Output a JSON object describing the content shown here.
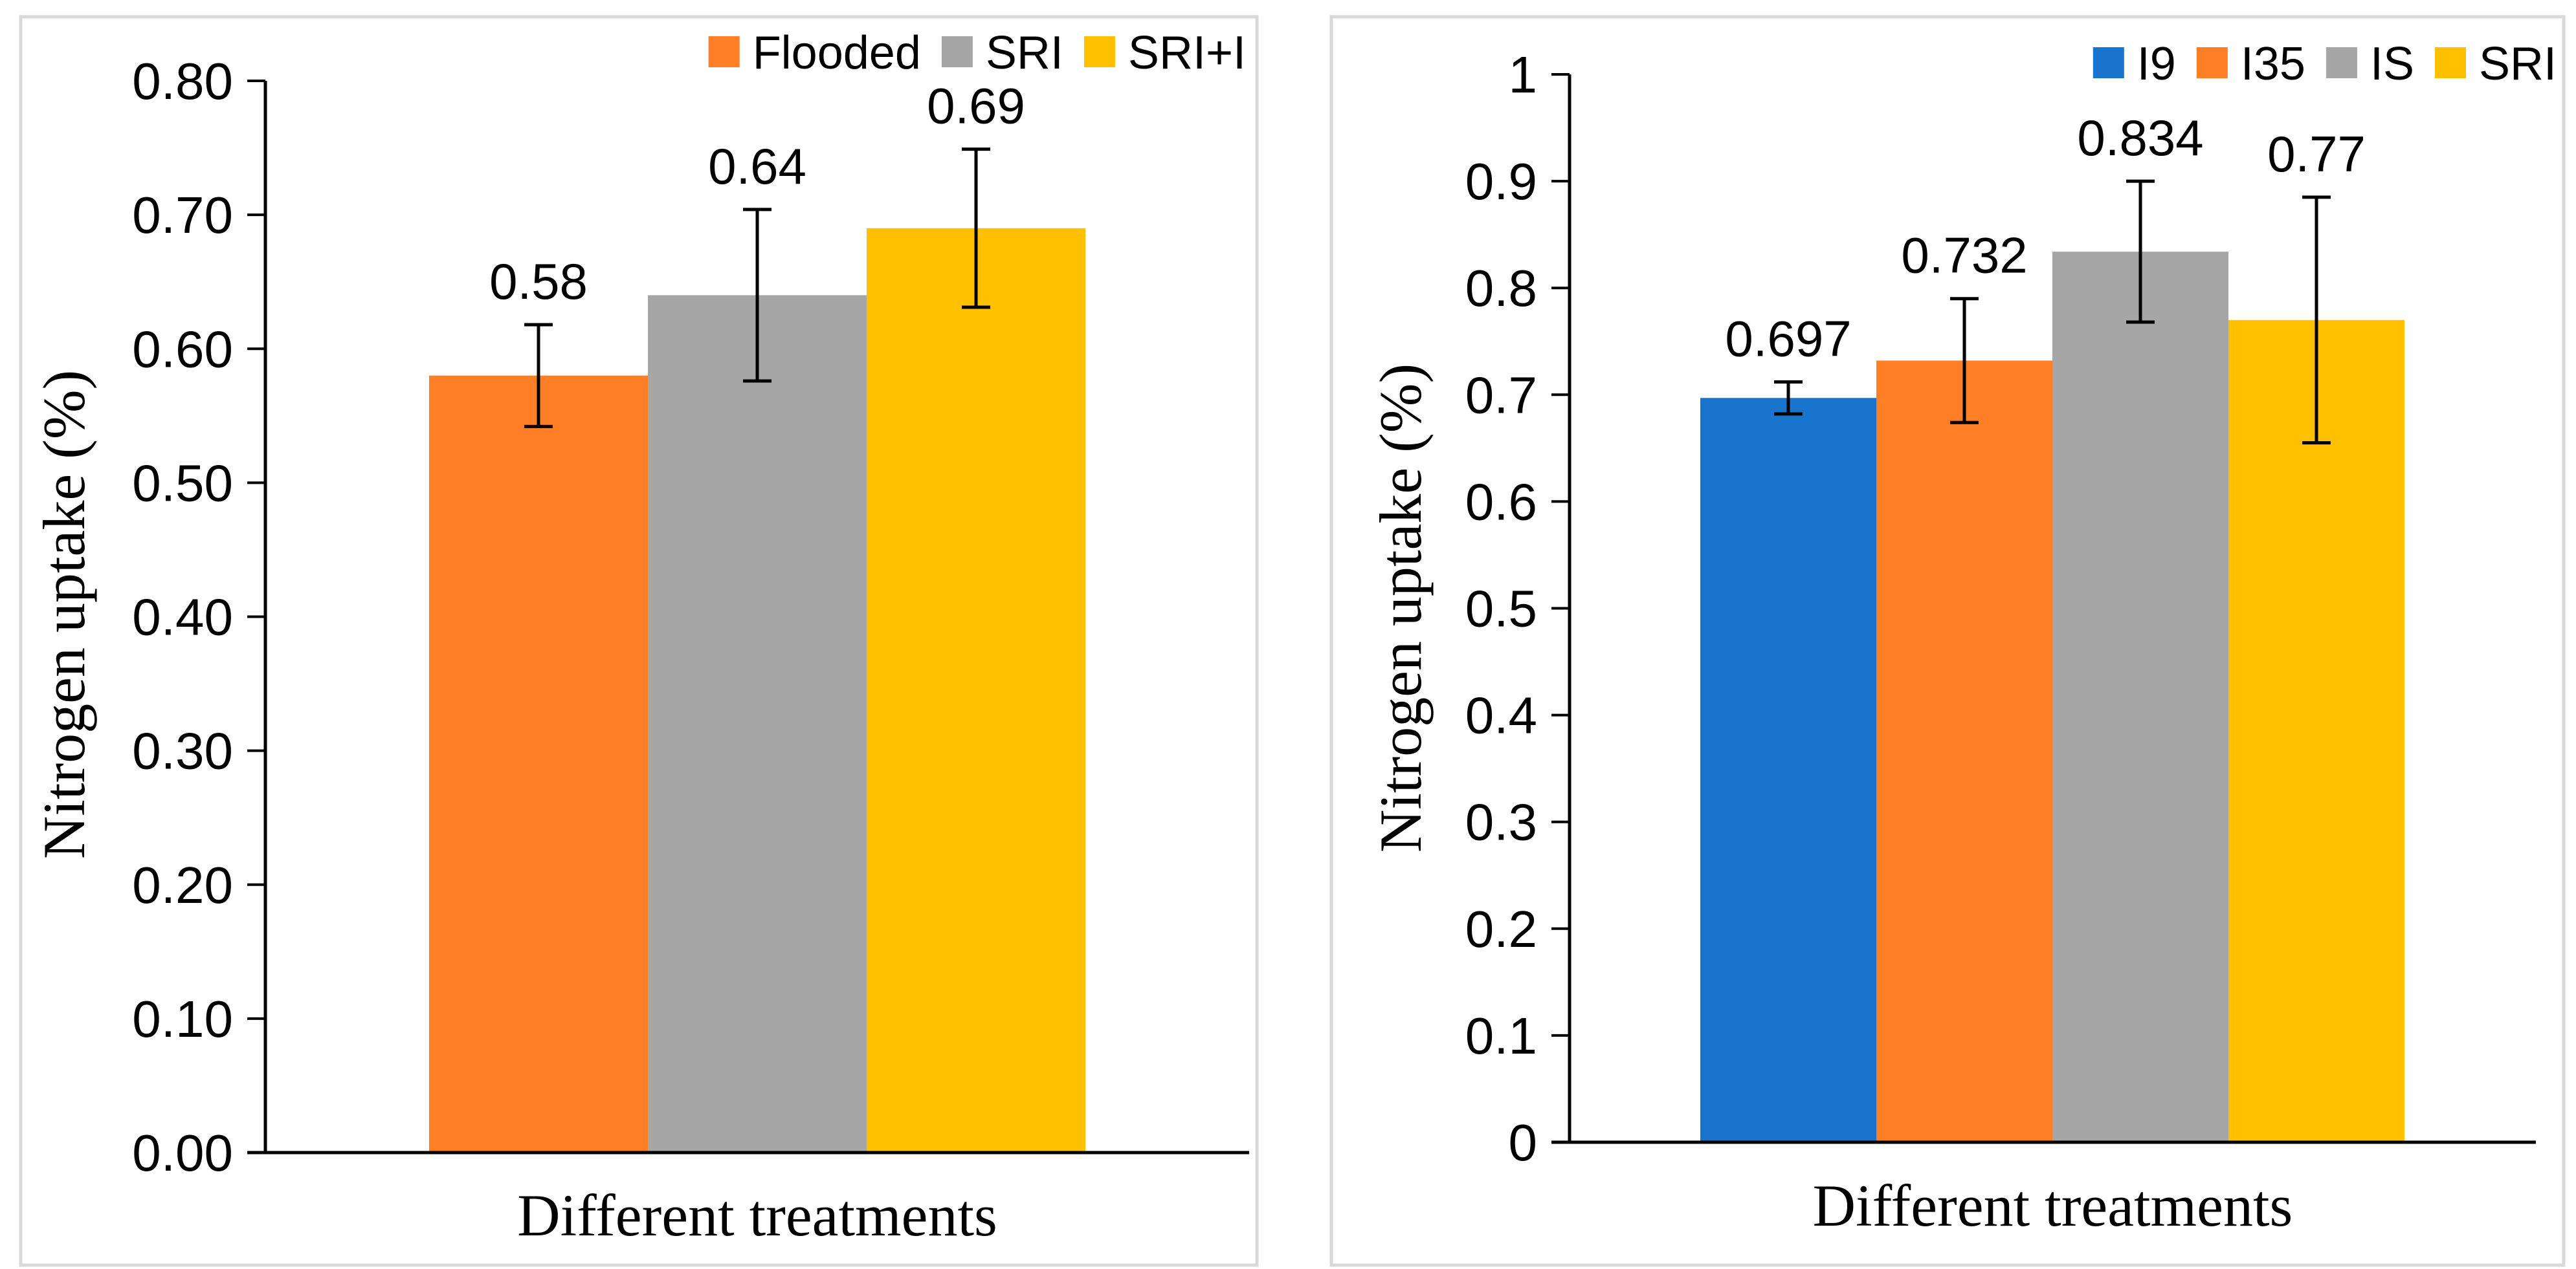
{
  "chart_data": [
    {
      "type": "bar",
      "title": "",
      "xlabel": "Different treatments",
      "ylabel": "Nitrogen uptake (%)",
      "ylim": [
        0,
        0.8
      ],
      "yticks": [
        "0.00",
        "0.10",
        "0.20",
        "0.30",
        "0.40",
        "0.50",
        "0.60",
        "0.70",
        "0.80"
      ],
      "legend_position": "top-right",
      "series": [
        {
          "name": "Flooded",
          "value": 0.58,
          "label": "0.58",
          "error": 0.038,
          "color": "#FF7F27"
        },
        {
          "name": "SRI",
          "value": 0.64,
          "label": "0.64",
          "error": 0.064,
          "color": "#A6A6A6"
        },
        {
          "name": "SRI+I",
          "value": 0.69,
          "label": "0.69",
          "error": 0.059,
          "color": "#FFC000"
        }
      ]
    },
    {
      "type": "bar",
      "title": "",
      "xlabel": "Different treatments",
      "ylabel": "Nitrogen uptake (%)",
      "ylim": [
        0,
        1
      ],
      "yticks": [
        "0",
        "0.1",
        "0.2",
        "0.3",
        "0.4",
        "0.5",
        "0.6",
        "0.7",
        "0.8",
        "0.9",
        "1"
      ],
      "legend_position": "top-right",
      "series": [
        {
          "name": "I9",
          "value": 0.697,
          "label": "0.697",
          "error": 0.015,
          "color": "#1874CD"
        },
        {
          "name": "I35",
          "value": 0.732,
          "label": "0.732",
          "error": 0.058,
          "color": "#FF7F27"
        },
        {
          "name": "IS",
          "value": 0.834,
          "label": "0.834",
          "error": 0.066,
          "color": "#A6A6A6"
        },
        {
          "name": "SRI",
          "value": 0.77,
          "label": "0.77",
          "error": 0.115,
          "color": "#FFC000"
        }
      ]
    }
  ]
}
